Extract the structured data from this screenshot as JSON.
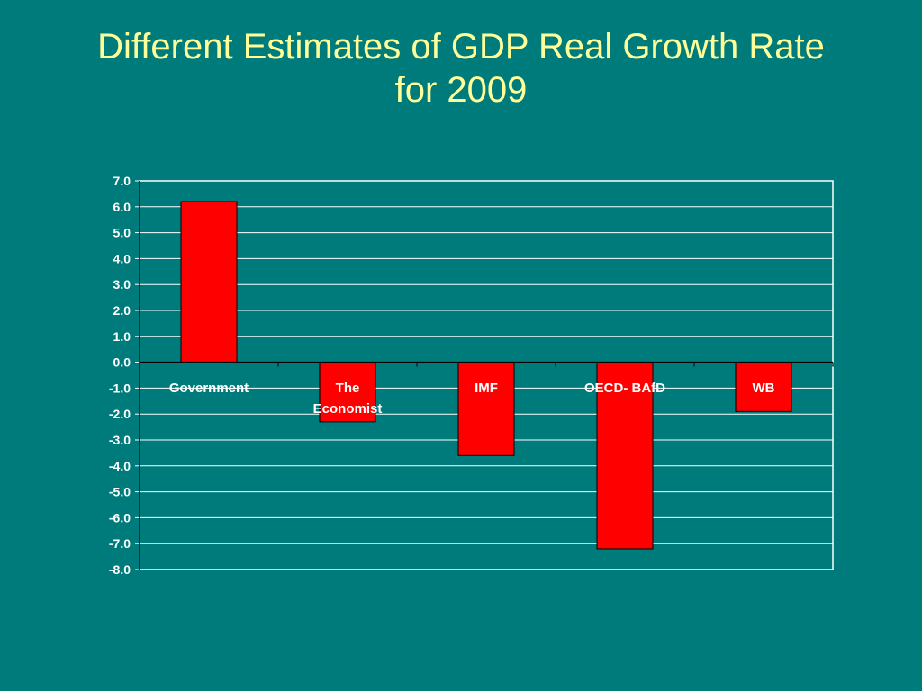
{
  "slide": {
    "title_line1": "Different Estimates of GDP Real Growth Rate",
    "title_line2": "for 2009"
  },
  "colors": {
    "background": "#007b7b",
    "title": "#ffff99",
    "bar_fill": "#ff0000",
    "bar_stroke": "#000000",
    "gridlines": "#ffffff",
    "text": "#ffffff"
  },
  "chart_data": {
    "type": "bar",
    "categories": [
      "Government",
      "The Economist",
      "IMF",
      "OECD- BAfD",
      "WB"
    ],
    "category_label_lines": [
      [
        "Government"
      ],
      [
        "The",
        "Economist"
      ],
      [
        "IMF"
      ],
      [
        "OECD- BAfD"
      ],
      [
        "WB"
      ]
    ],
    "values": [
      6.2,
      -2.3,
      -3.6,
      -7.2,
      -1.9
    ],
    "title": "",
    "xlabel": "",
    "ylabel": "",
    "ylim": [
      -8.0,
      7.0
    ],
    "yticks": [
      "7.0",
      "6.0",
      "5.0",
      "4.0",
      "3.0",
      "2.0",
      "1.0",
      "0.0",
      "-1.0",
      "-2.0",
      "-3.0",
      "-4.0",
      "-5.0",
      "-6.0",
      "-7.0",
      "-8.0"
    ],
    "grid": true,
    "legend": "none"
  }
}
